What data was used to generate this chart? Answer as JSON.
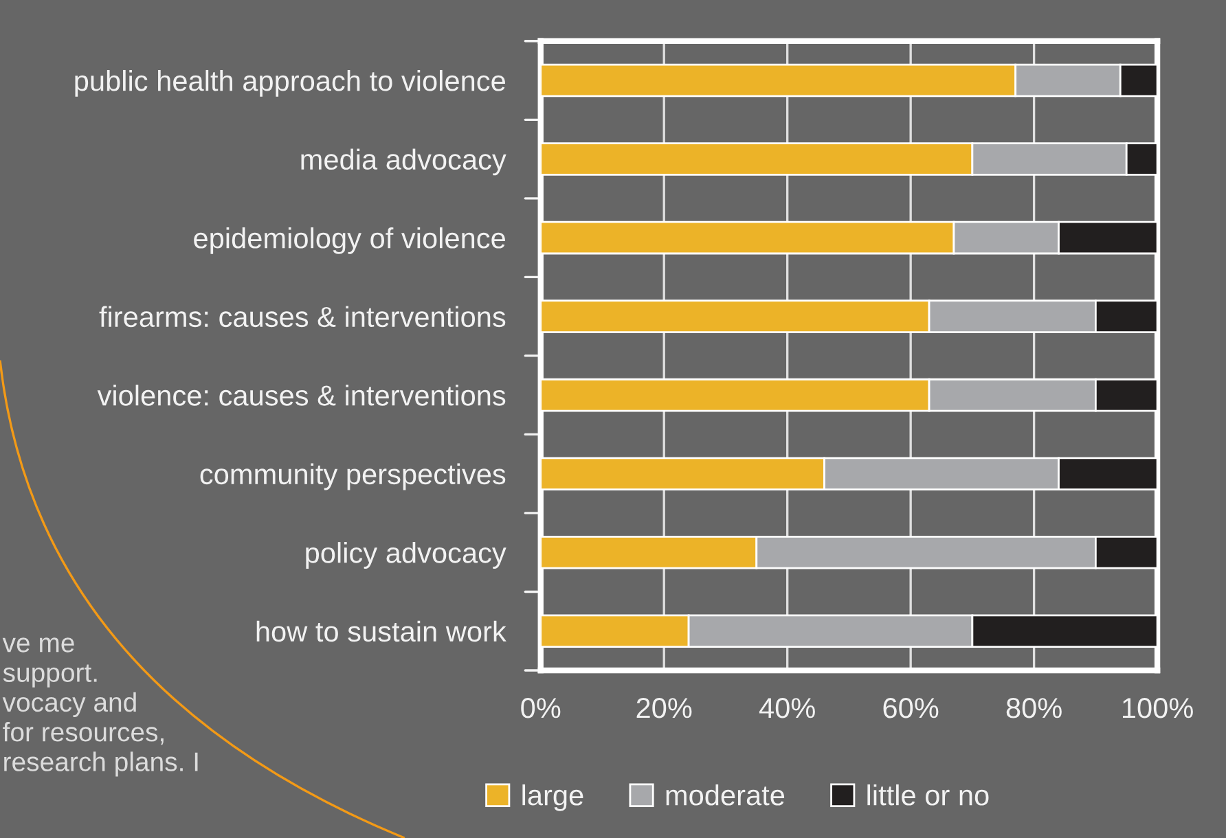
{
  "chart_data": {
    "type": "bar",
    "orientation": "horizontal",
    "stacked": true,
    "categories": [
      "public health approach to violence",
      "media advocacy",
      "epidemiology of violence",
      "firearms: causes & interventions",
      "violence: causes & interventions",
      "community perspectives",
      "policy advocacy",
      "how to sustain work"
    ],
    "series": [
      {
        "name": "large",
        "color": "#ecb328",
        "values": [
          77,
          70,
          67,
          63,
          63,
          46,
          35,
          24
        ]
      },
      {
        "name": "moderate",
        "color": "#a7a8ab",
        "values": [
          17,
          25,
          17,
          27,
          27,
          38,
          55,
          46
        ]
      },
      {
        "name": "little or no",
        "color": "#221f1f",
        "values": [
          6,
          5,
          16,
          10,
          10,
          16,
          10,
          30
        ]
      }
    ],
    "xlim": [
      0,
      100
    ],
    "xticks": [
      {
        "value": 0,
        "label": "0%"
      },
      {
        "value": 20,
        "label": "20%"
      },
      {
        "value": 40,
        "label": "40%"
      },
      {
        "value": 60,
        "label": "60%"
      },
      {
        "value": 80,
        "label": "80%"
      },
      {
        "value": 100,
        "label": "100%"
      }
    ],
    "grid": "x",
    "legend": "bottom",
    "annotations": [
      "ve me\nsupport.\nvocacy and\nfor resources,\nresearch plans. I"
    ]
  }
}
